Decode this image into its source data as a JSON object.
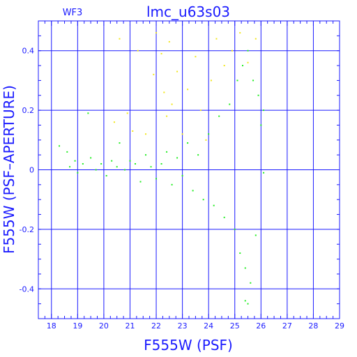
{
  "chart_data": {
    "type": "scatter",
    "title": "lmc_u63s03",
    "subtitle": "WF3",
    "xlabel": "F555W (PSF)",
    "ylabel": "F555W (PSF–APERTURE)",
    "xlim": [
      17.5,
      29
    ],
    "ylim": [
      -0.5,
      0.5
    ],
    "x_ticks": [
      18,
      19,
      20,
      21,
      22,
      23,
      24,
      25,
      26,
      27,
      28,
      29
    ],
    "y_ticks": [
      -0.4,
      -0.2,
      0,
      0.2,
      0.4
    ],
    "x_minor_step": 0.25,
    "y_minor_step": 0.05,
    "grid": true,
    "colors": {
      "axes": "#1a1aff",
      "series_good": "#22ee22",
      "series_rejected": "#f2e61a"
    },
    "series": [
      {
        "color": "#22ee22",
        "points": [
          [
            18.3,
            0.08
          ],
          [
            18.6,
            0.06
          ],
          [
            18.7,
            0.01
          ],
          [
            18.9,
            0.03
          ],
          [
            19.0,
            -0.01
          ],
          [
            19.2,
            0.02
          ],
          [
            19.4,
            0.19
          ],
          [
            19.5,
            0.04
          ],
          [
            19.7,
            0.0
          ],
          [
            19.9,
            0.02
          ],
          [
            20.1,
            -0.02
          ],
          [
            20.3,
            0.03
          ],
          [
            20.5,
            0.01
          ],
          [
            20.6,
            0.09
          ],
          [
            20.8,
            0.0
          ],
          [
            21.0,
            0.03
          ],
          [
            21.2,
            0.02
          ],
          [
            21.4,
            -0.04
          ],
          [
            21.6,
            0.05
          ],
          [
            21.8,
            0.01
          ],
          [
            22.0,
            -0.03
          ],
          [
            22.2,
            0.02
          ],
          [
            22.4,
            0.06
          ],
          [
            22.6,
            -0.05
          ],
          [
            22.8,
            0.04
          ],
          [
            23.0,
            -0.02
          ],
          [
            23.2,
            0.09
          ],
          [
            23.4,
            -0.07
          ],
          [
            23.6,
            0.05
          ],
          [
            23.8,
            -0.1
          ],
          [
            24.0,
            0.12
          ],
          [
            24.2,
            -0.12
          ],
          [
            24.4,
            0.18
          ],
          [
            24.6,
            -0.16
          ],
          [
            24.8,
            0.22
          ],
          [
            25.0,
            -0.2
          ],
          [
            25.1,
            0.3
          ],
          [
            25.2,
            -0.28
          ],
          [
            25.3,
            0.35
          ],
          [
            25.4,
            -0.33
          ],
          [
            25.5,
            0.4
          ],
          [
            25.6,
            -0.38
          ],
          [
            25.7,
            0.3
          ],
          [
            25.8,
            -0.22
          ],
          [
            25.9,
            0.25
          ],
          [
            26.0,
            0.15
          ],
          [
            26.1,
            0.2
          ],
          [
            25.4,
            -0.44
          ],
          [
            25.5,
            -0.45
          ],
          [
            26.1,
            -0.01
          ]
        ]
      },
      {
        "color": "#f2e61a",
        "points": [
          [
            20.4,
            0.16
          ],
          [
            20.6,
            0.44
          ],
          [
            20.9,
            0.19
          ],
          [
            21.1,
            0.13
          ],
          [
            21.3,
            0.4
          ],
          [
            21.6,
            0.12
          ],
          [
            21.9,
            0.32
          ],
          [
            22.0,
            0.46
          ],
          [
            22.2,
            0.39
          ],
          [
            22.3,
            0.26
          ],
          [
            22.4,
            0.18
          ],
          [
            22.5,
            0.43
          ],
          [
            22.6,
            0.22
          ],
          [
            22.8,
            0.33
          ],
          [
            23.0,
            0.12
          ],
          [
            23.2,
            0.27
          ],
          [
            23.5,
            0.38
          ],
          [
            23.7,
            0.2
          ],
          [
            23.9,
            0.1
          ],
          [
            24.1,
            0.3
          ],
          [
            24.3,
            0.44
          ],
          [
            24.6,
            0.35
          ],
          [
            24.9,
            0.4
          ],
          [
            25.2,
            0.46
          ],
          [
            25.5,
            0.36
          ],
          [
            25.8,
            0.44
          ]
        ]
      }
    ]
  }
}
